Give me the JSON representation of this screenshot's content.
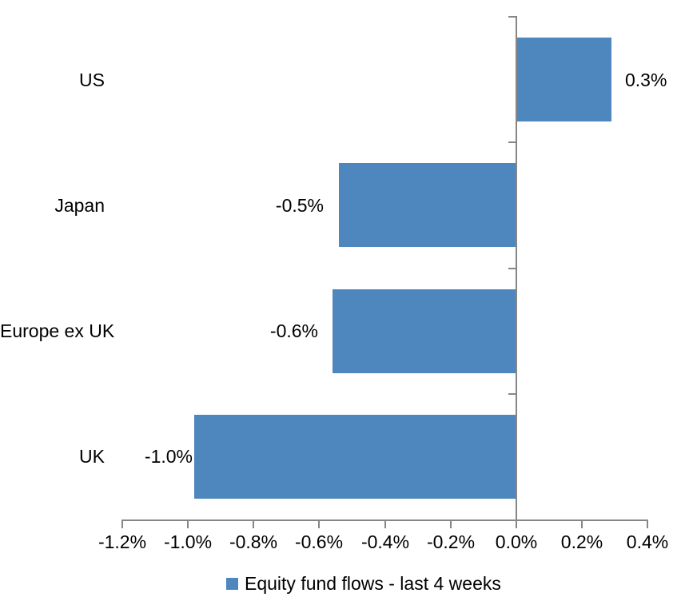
{
  "chart_data": {
    "type": "bar",
    "orientation": "horizontal",
    "title": "",
    "xlabel": "",
    "ylabel": "",
    "categories": [
      "US",
      "Japan",
      "Europe ex UK",
      "UK"
    ],
    "values": [
      0.3,
      -0.5,
      -0.6,
      -1.0
    ],
    "precise_values_pct": [
      0.29,
      -0.54,
      -0.56,
      -0.98
    ],
    "data_labels": [
      "0.3%",
      "-0.5%",
      "-0.6%",
      "-1.0%"
    ],
    "xlim": [
      -1.2,
      0.4
    ],
    "xtick_labels": [
      "-1.2%",
      "-1.0%",
      "-0.8%",
      "-0.6%",
      "-0.4%",
      "-0.2%",
      "0.0%",
      "0.2%",
      "0.4%"
    ],
    "grid": false,
    "legend": {
      "position": "bottom",
      "entries": [
        "Equity fund flows - last 4 weeks"
      ]
    },
    "colors": {
      "bar": "#4E87BD",
      "axis": "#868686",
      "text": "#000000",
      "background": "#FFFFFF"
    }
  }
}
